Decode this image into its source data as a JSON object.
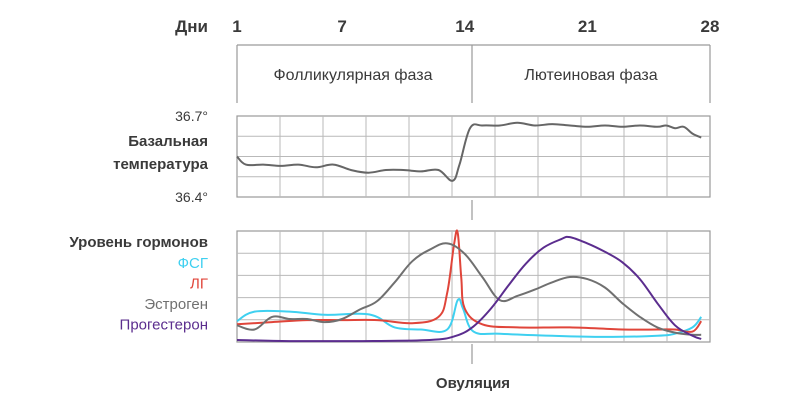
{
  "chart_data": {
    "type": "line",
    "days_label": "Дни",
    "day_ticks": [
      "1",
      "7",
      "14",
      "21",
      "28"
    ],
    "phases": [
      "Фолликулярная фаза",
      "Лютеиновая фаза"
    ],
    "temperature": {
      "label_line1": "Базальная",
      "label_line2": "температура",
      "top_label": "36.7°",
      "bottom_label": "36.4°",
      "range": [
        36.4,
        36.7
      ],
      "color": "#666666",
      "points": [
        [
          1,
          36.55
        ],
        [
          1.5,
          36.52
        ],
        [
          2.5,
          36.52
        ],
        [
          3.5,
          36.515
        ],
        [
          4.5,
          36.52
        ],
        [
          5.5,
          36.51
        ],
        [
          6.5,
          36.52
        ],
        [
          7.5,
          36.5
        ],
        [
          8.5,
          36.49
        ],
        [
          9.5,
          36.5
        ],
        [
          10.5,
          36.5
        ],
        [
          11.5,
          36.495
        ],
        [
          12.5,
          36.5
        ],
        [
          13.3,
          36.46
        ],
        [
          13.7,
          36.52
        ],
        [
          14.3,
          36.655
        ],
        [
          15,
          36.665
        ],
        [
          16,
          36.665
        ],
        [
          17,
          36.675
        ],
        [
          18,
          36.665
        ],
        [
          19,
          36.67
        ],
        [
          20,
          36.665
        ],
        [
          21,
          36.66
        ],
        [
          22,
          36.665
        ],
        [
          23,
          36.66
        ],
        [
          24,
          36.665
        ],
        [
          25,
          36.66
        ],
        [
          25.5,
          36.665
        ],
        [
          26,
          36.655
        ],
        [
          26.5,
          36.66
        ],
        [
          27,
          36.635
        ],
        [
          27.5,
          36.62
        ]
      ]
    },
    "hormones": {
      "title": "Уровень гормонов",
      "series": [
        {
          "name": "ФСГ",
          "color": "#3fd0f0",
          "points": [
            [
              1,
              0.18
            ],
            [
              2,
              0.27
            ],
            [
              4,
              0.27
            ],
            [
              6,
              0.24
            ],
            [
              8,
              0.25
            ],
            [
              9,
              0.22
            ],
            [
              10,
              0.12
            ],
            [
              11.5,
              0.1
            ],
            [
              13,
              0.1
            ],
            [
              13.6,
              0.38
            ],
            [
              13.9,
              0.3
            ],
            [
              14.5,
              0.08
            ],
            [
              16,
              0.06
            ],
            [
              19,
              0.04
            ],
            [
              22,
              0.03
            ],
            [
              25,
              0.04
            ],
            [
              26,
              0.06
            ],
            [
              27,
              0.12
            ],
            [
              27.5,
              0.22
            ]
          ]
        },
        {
          "name": "ЛГ",
          "color": "#e0453a",
          "points": [
            [
              1,
              0.15
            ],
            [
              3,
              0.17
            ],
            [
              5,
              0.19
            ],
            [
              7,
              0.19
            ],
            [
              9,
              0.19
            ],
            [
              11,
              0.16
            ],
            [
              12.5,
              0.22
            ],
            [
              13,
              0.45
            ],
            [
              13.4,
              0.92
            ],
            [
              13.6,
              1.02
            ],
            [
              13.8,
              0.6
            ],
            [
              14,
              0.3
            ],
            [
              15,
              0.15
            ],
            [
              17,
              0.12
            ],
            [
              20,
              0.12
            ],
            [
              23,
              0.1
            ],
            [
              25,
              0.1
            ],
            [
              26,
              0.1
            ],
            [
              27,
              0.08
            ],
            [
              27.5,
              0.18
            ]
          ]
        },
        {
          "name": "Эстроген",
          "color": "#707070",
          "points": [
            [
              1,
              0.14
            ],
            [
              2,
              0.1
            ],
            [
              3,
              0.22
            ],
            [
              4,
              0.2
            ],
            [
              5,
              0.2
            ],
            [
              6,
              0.17
            ],
            [
              7,
              0.2
            ],
            [
              8,
              0.29
            ],
            [
              9,
              0.37
            ],
            [
              10,
              0.55
            ],
            [
              11,
              0.75
            ],
            [
              12,
              0.86
            ],
            [
              13,
              0.92
            ],
            [
              14,
              0.82
            ],
            [
              15,
              0.6
            ],
            [
              16,
              0.38
            ],
            [
              17,
              0.42
            ],
            [
              18,
              0.48
            ],
            [
              19,
              0.55
            ],
            [
              20,
              0.6
            ],
            [
              21,
              0.58
            ],
            [
              22,
              0.5
            ],
            [
              23,
              0.35
            ],
            [
              24,
              0.22
            ],
            [
              25,
              0.12
            ],
            [
              26,
              0.07
            ],
            [
              27,
              0.05
            ],
            [
              27.5,
              0.05
            ]
          ]
        },
        {
          "name": "Прогестерон",
          "color": "#5b2d8e",
          "points": [
            [
              1,
              0.0
            ],
            [
              4,
              -0.01
            ],
            [
              8,
              -0.01
            ],
            [
              12,
              0.0
            ],
            [
              13.5,
              0.04
            ],
            [
              14.5,
              0.13
            ],
            [
              15.5,
              0.3
            ],
            [
              16.5,
              0.52
            ],
            [
              17.5,
              0.73
            ],
            [
              18.5,
              0.88
            ],
            [
              19.5,
              0.96
            ],
            [
              20,
              0.98
            ],
            [
              21,
              0.92
            ],
            [
              22,
              0.84
            ],
            [
              23,
              0.74
            ],
            [
              24,
              0.58
            ],
            [
              25,
              0.35
            ],
            [
              26,
              0.14
            ],
            [
              27,
              0.04
            ],
            [
              27.5,
              0.01
            ]
          ]
        }
      ]
    },
    "ovulation_label": "Овуляция",
    "xlim": [
      1,
      28
    ]
  }
}
